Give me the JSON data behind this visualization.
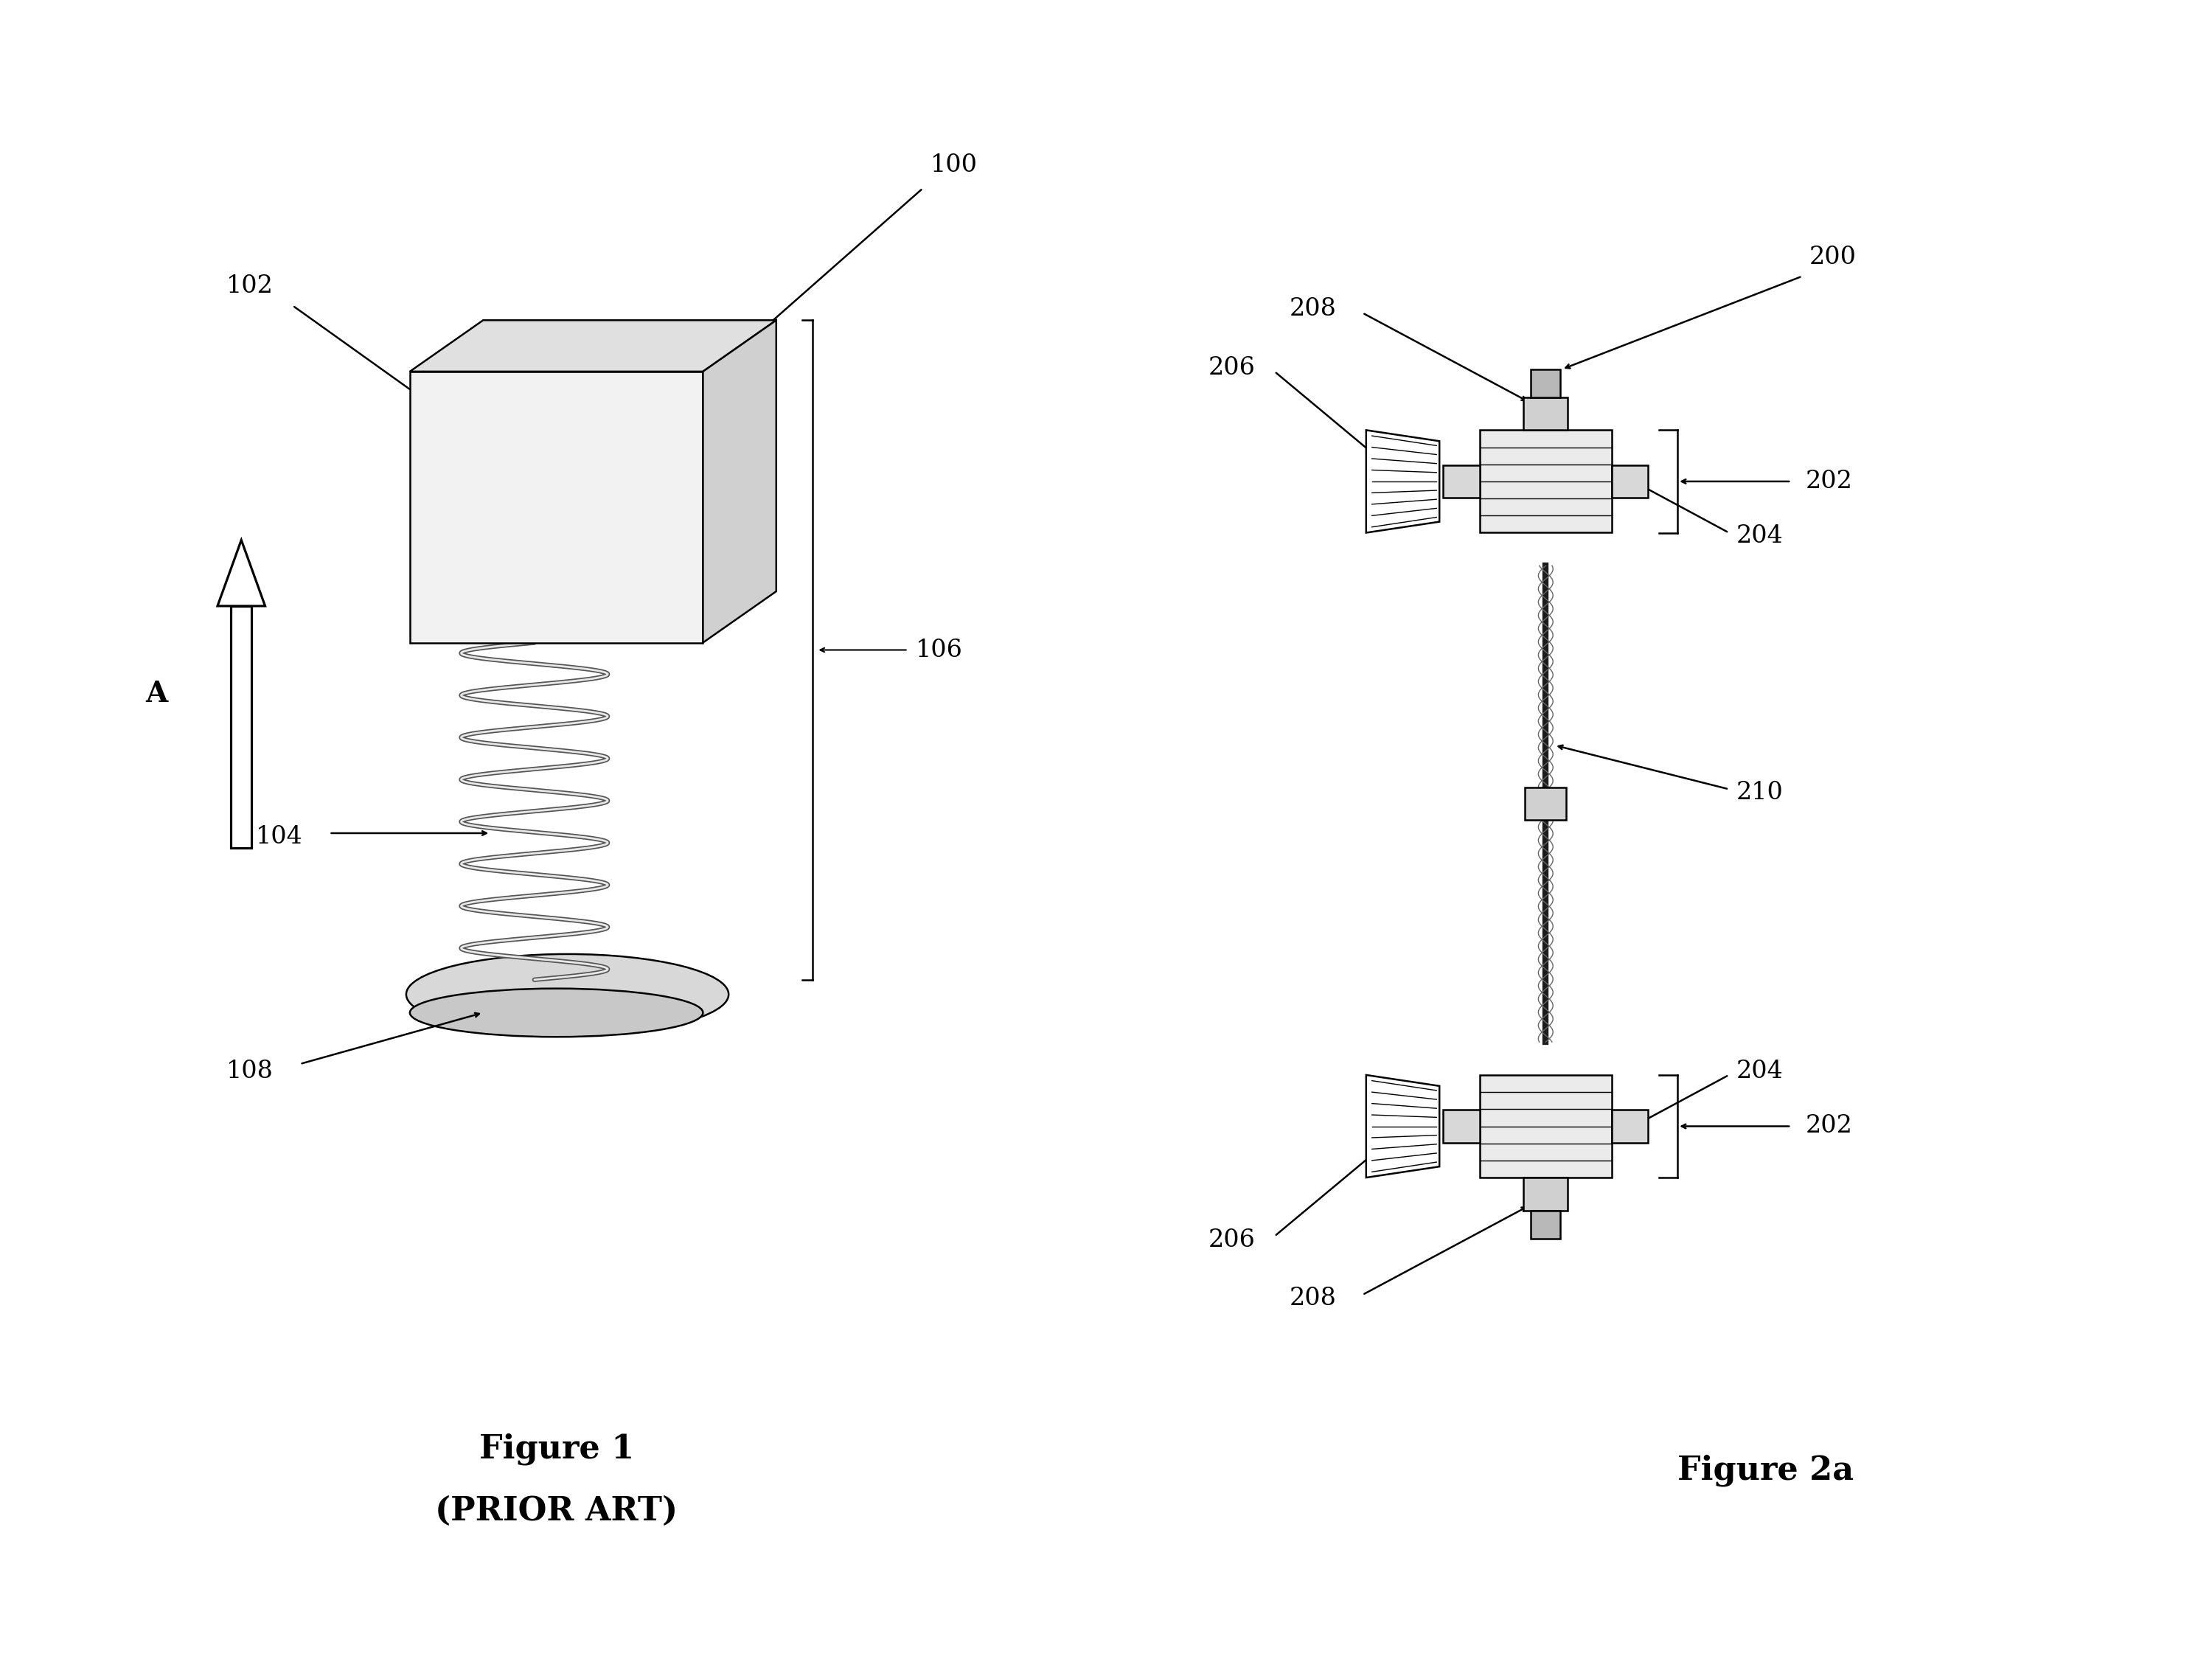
{
  "bg_color": "#ffffff",
  "fig1_title": "Figure 1",
  "fig1_subtitle": "(PRIOR ART)",
  "fig2_title": "Figure 2a",
  "label_100": "100",
  "label_102": "102",
  "label_104": "104",
  "label_106": "106",
  "label_108": "108",
  "label_200": "200",
  "label_202": "202",
  "label_204": "204",
  "label_206": "206",
  "label_208": "208",
  "label_210": "210",
  "label_A": "A",
  "line_color": "#000000",
  "title_fontsize": 32,
  "label_fontsize": 24
}
